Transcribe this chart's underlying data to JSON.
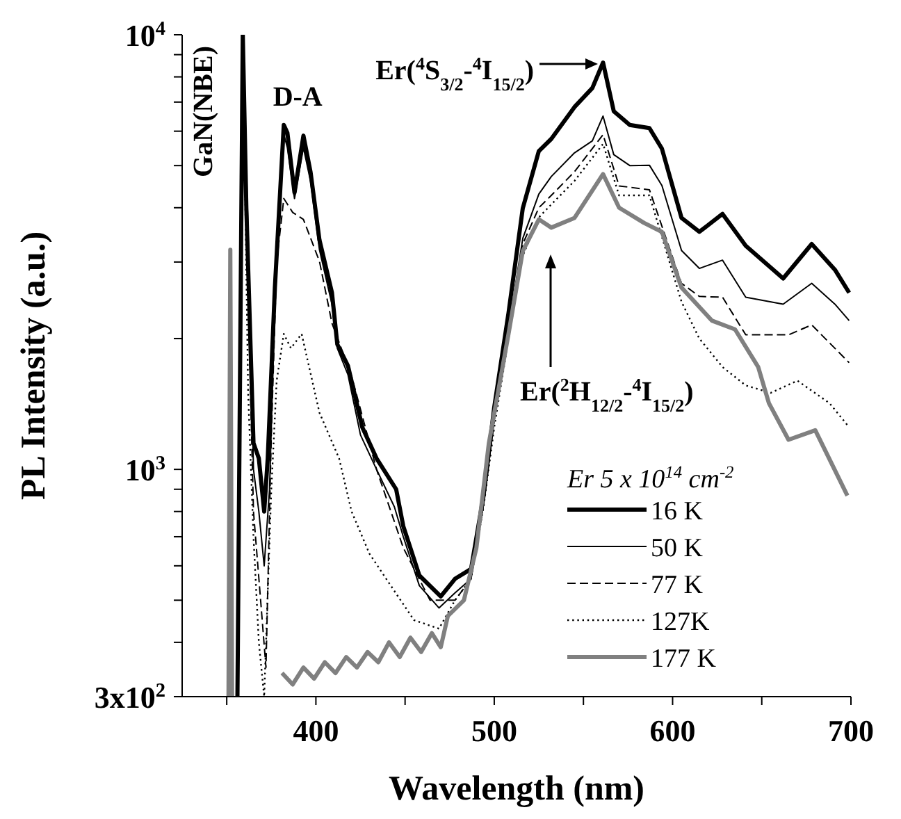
{
  "chart_data": {
    "type": "line",
    "xlabel": "Wavelength (nm)",
    "ylabel": "PL Intensity (a.u.)",
    "legend_title": "Er 5 x 10$^{14}$ cm$^{-2}$",
    "legend": "bottom right",
    "log": "y",
    "xlim": [
      325,
      700
    ],
    "xticks": [
      {
        "value": 350,
        "label": null
      },
      400,
      {
        "value": 450,
        "label": null
      },
      500,
      {
        "value": 550,
        "label": null
      },
      600,
      {
        "value": 650,
        "label": null
      },
      700
    ],
    "ylim": [
      300,
      10000
    ],
    "yticks": [
      {
        "value": 300,
        "label": "3x10$^{2}$"
      },
      {
        "value": 400,
        "label": null
      },
      {
        "value": 500,
        "label": null
      },
      {
        "value": 600,
        "label": null
      },
      {
        "value": 700,
        "label": null
      },
      {
        "value": 800,
        "label": null
      },
      {
        "value": 900,
        "label": null
      },
      {
        "value": 1000,
        "label": "10$^{3}$"
      },
      {
        "value": 2000,
        "label": null
      },
      {
        "value": 3000,
        "label": null
      },
      {
        "value": 4000,
        "label": null
      },
      {
        "value": 5000,
        "label": null
      },
      {
        "value": 6000,
        "label": null
      },
      {
        "value": 7000,
        "label": null
      },
      {
        "value": 8000,
        "label": null
      },
      {
        "value": 9000,
        "label": null
      },
      {
        "value": 10000,
        "label": "10$^{4}$"
      }
    ],
    "annotations": [
      {
        "text": "GaN(NBE)",
        "x": 359,
        "y": 10000
      },
      {
        "text": "D-A",
        "x": 382,
        "y": 6200
      },
      "Er($^{4}$S$_{3/2}$-$^{4}$I$_{15/2}$)",
      "Er($^{2}$H$_{12/2}$-$^{4}$I$_{15/2}$)"
    ],
    "series": [
      {
        "name": "16 K",
        "color": "#000000",
        "line_style": "solid",
        "x": [
          356,
          359,
          361,
          365,
          368,
          371,
          373,
          377,
          382,
          384,
          388,
          393,
          397,
          402,
          409,
          412,
          418,
          426,
          434,
          445,
          449,
          458,
          470,
          478,
          487,
          494,
          500,
          508,
          516,
          525,
          532,
          545,
          555,
          561,
          567,
          576,
          587,
          594,
          605,
          615,
          628,
          641,
          662,
          678,
          691,
          699
        ],
        "values": [
          300,
          10000,
          3990,
          1150,
          1060,
          800,
          1060,
          2620,
          6200,
          5950,
          4330,
          5860,
          4830,
          3370,
          2550,
          1940,
          1730,
          1250,
          1060,
          900,
          740,
          570,
          510,
          560,
          590,
          870,
          1390,
          2290,
          3990,
          5400,
          5760,
          6820,
          7540,
          8630,
          6670,
          6200,
          6100,
          5470,
          3790,
          3520,
          3870,
          3270,
          2750,
          3300,
          2880,
          2550
        ]
      },
      {
        "name": "50 K",
        "color": "#000000",
        "line_style": "solid",
        "x": [
          356,
          359,
          362,
          365,
          368,
          371,
          374,
          377,
          382,
          384,
          388,
          393,
          397,
          402,
          409,
          412,
          418,
          425,
          434,
          444,
          449,
          458,
          469,
          478,
          487,
          494,
          500,
          508,
          516,
          525,
          532,
          545,
          555,
          561,
          567,
          576,
          587,
          594,
          605,
          615,
          628,
          641,
          662,
          678,
          691,
          699
        ],
        "values": [
          300,
          10000,
          3500,
          1000,
          800,
          600,
          900,
          2400,
          5900,
          5500,
          4200,
          5500,
          4600,
          3200,
          2400,
          1900,
          1650,
          1200,
          1000,
          820,
          700,
          540,
          480,
          520,
          560,
          830,
          1300,
          2100,
          3400,
          4300,
          4720,
          5350,
          5700,
          6500,
          5300,
          5000,
          5010,
          4500,
          3190,
          2900,
          3030,
          2490,
          2400,
          2680,
          2400,
          2200
        ]
      },
      {
        "name": "77 K",
        "color": "#000000",
        "line_style": "dashed",
        "x": [
          356,
          359,
          362,
          365,
          369,
          372,
          375,
          378,
          382,
          387,
          393,
          402,
          409,
          420,
          434,
          449,
          464,
          478,
          487,
          494,
          500,
          508,
          516,
          525,
          532,
          545,
          561,
          570,
          587,
          605,
          615,
          628,
          641,
          665,
          678,
          699
        ],
        "values": [
          300,
          10000,
          2500,
          800,
          500,
          350,
          1200,
          3000,
          4200,
          3900,
          3760,
          3010,
          2170,
          1640,
          1000,
          660,
          500,
          500,
          560,
          830,
          1300,
          2100,
          3300,
          4000,
          4270,
          4840,
          5890,
          4490,
          4400,
          2680,
          2500,
          2490,
          2040,
          2040,
          2150,
          1760
        ]
      },
      {
        "name": "127K",
        "color": "#000000",
        "line_style": "dotted",
        "x": [
          356,
          359,
          362,
          365,
          368,
          371,
          375,
          378,
          382,
          386,
          392,
          402,
          413,
          420,
          430,
          442,
          455,
          469,
          478,
          487,
          494,
          500,
          508,
          516,
          525,
          532,
          545,
          561,
          570,
          587,
          605,
          615,
          628,
          641,
          655,
          670,
          688,
          699
        ],
        "values": [
          300,
          10000,
          1500,
          700,
          400,
          300,
          900,
          1600,
          2050,
          1900,
          2050,
          1350,
          1060,
          800,
          640,
          540,
          450,
          430,
          500,
          560,
          820,
          1250,
          2000,
          3100,
          3800,
          4070,
          4610,
          5610,
          4270,
          4270,
          2430,
          2000,
          1720,
          1560,
          1500,
          1600,
          1420,
          1250
        ]
      },
      {
        "name": "177 K",
        "color": "#808080",
        "line_style": "solid",
        "x": [
          351,
          352,
          353,
          366,
          381,
          387,
          393,
          399,
          405,
          411,
          417,
          423,
          429,
          435,
          441,
          447,
          453,
          459,
          465,
          470,
          474,
          483,
          490,
          497,
          508,
          516,
          525,
          532,
          545,
          561,
          570,
          584,
          594,
          605,
          622,
          635,
          648,
          654,
          665,
          680,
          698
        ],
        "values": [
          300,
          3200,
          300,
          null,
          340,
          320,
          350,
          330,
          360,
          340,
          370,
          350,
          380,
          360,
          400,
          370,
          410,
          380,
          420,
          390,
          460,
          500,
          660,
          1150,
          2050,
          3180,
          3760,
          3600,
          3790,
          4780,
          4000,
          3690,
          3520,
          2620,
          2200,
          2100,
          1720,
          1420,
          1170,
          1230,
          870
        ]
      }
    ]
  }
}
